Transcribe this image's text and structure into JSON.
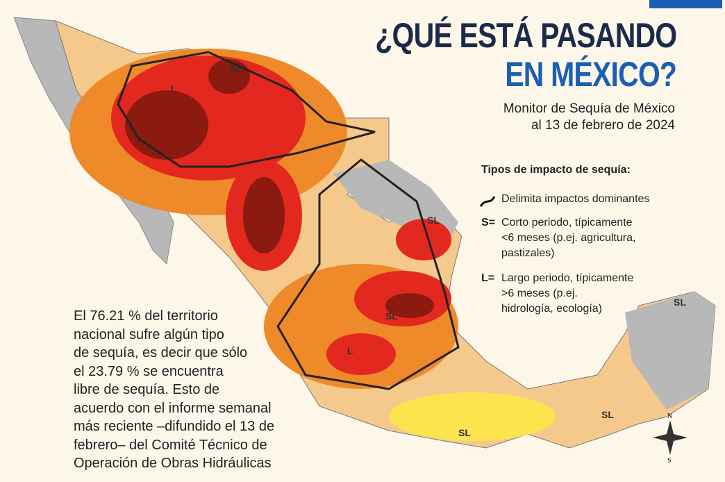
{
  "header": {
    "title_line1": "¿QUÉ ESTÁ PASANDO",
    "title_line2": "EN MÉXICO?",
    "subtitle_line1": "Monitor de Sequía de México",
    "subtitle_line2": "al 13 de febrero de 2024"
  },
  "legend": {
    "title": "Tipos de impacto de sequía:",
    "items": [
      {
        "symbol": "",
        "lines": [
          "Delimita impactos dominantes"
        ]
      },
      {
        "symbol": "S=",
        "lines": [
          "Corto periodo, típicamente",
          "<6 meses (p.ej. agricultura,",
          "pastizales)"
        ]
      },
      {
        "symbol": "L=",
        "lines": [
          "Largo periodo, típicamente",
          ">6 meses (p.ej.",
          "hidrología, ecología)"
        ]
      }
    ]
  },
  "map": {
    "labels": [
      "SL",
      "L",
      "SL",
      "SL",
      "L",
      "SL",
      "SL",
      "SL"
    ],
    "compass": {
      "north": "N",
      "south": "S"
    }
  },
  "article": {
    "lines": [
      "El 76.21 % del territorio",
      "nacional sufre algún tipo",
      "de sequía, es decir que sólo",
      "el 23.79 % se encuentra",
      "libre de sequía. Esto de",
      "acuerdo con el informe semanal",
      "más reciente –difundido el 13 de",
      "febrero– del Comité Técnico de",
      "Operación de Obras Hidráulicas"
    ]
  }
}
